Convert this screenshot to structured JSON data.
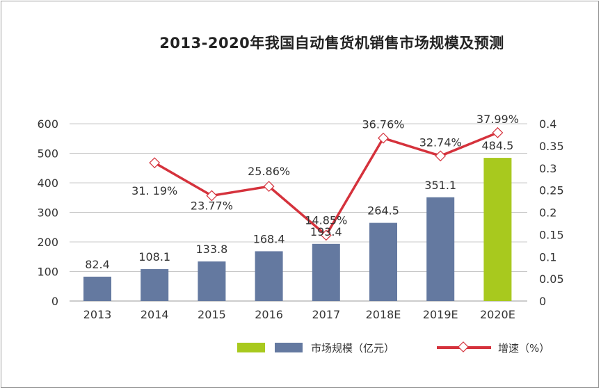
{
  "chart_data": {
    "type": "bar+line",
    "title": "2013-2020年我国自动售货机销售市场规模及预测",
    "categories": [
      "2013",
      "2014",
      "2015",
      "2016",
      "2017",
      "2018E",
      "2019E",
      "2020E"
    ],
    "series": [
      {
        "name": "市场规模（亿元）",
        "type": "bar",
        "axis": "left",
        "values": [
          82.4,
          108.1,
          133.8,
          168.4,
          193.4,
          264.5,
          351.1,
          484.5
        ],
        "labels": [
          "82.4",
          "108.1",
          "133.8",
          "168.4",
          "193.4",
          "264.5",
          "351.1",
          "484.5"
        ],
        "colors": [
          "#6479a0",
          "#6479a0",
          "#6479a0",
          "#6479a0",
          "#6479a0",
          "#6479a0",
          "#6479a0",
          "#a8c91e"
        ]
      },
      {
        "name": "增速（%）",
        "type": "line",
        "axis": "right",
        "values": [
          null,
          0.3119,
          0.2377,
          0.2586,
          0.1485,
          0.3676,
          0.3274,
          0.3799
        ],
        "labels": [
          null,
          "31. 19%",
          "23.77%",
          "25.86%",
          "14.85%",
          "36.76%",
          "32.74%",
          "37.99%"
        ],
        "color": "#d5323c"
      }
    ],
    "left_axis": {
      "ylim": [
        0,
        600
      ],
      "ticks": [
        "0",
        "100",
        "200",
        "300",
        "400",
        "500",
        "600"
      ]
    },
    "right_axis": {
      "ylim": [
        0,
        0.4
      ],
      "ticks": [
        "0",
        "0.05",
        "0.1",
        "0.15",
        "0.2",
        "0.25",
        "0.3",
        "0.35",
        "0.4"
      ]
    },
    "grid": true,
    "legend": {
      "position": "bottom-right",
      "bar_label": "市场规模（亿元）",
      "line_label": "增速（%）",
      "bar_swatch_colors": [
        "#a8c91e",
        "#6479a0"
      ]
    }
  }
}
